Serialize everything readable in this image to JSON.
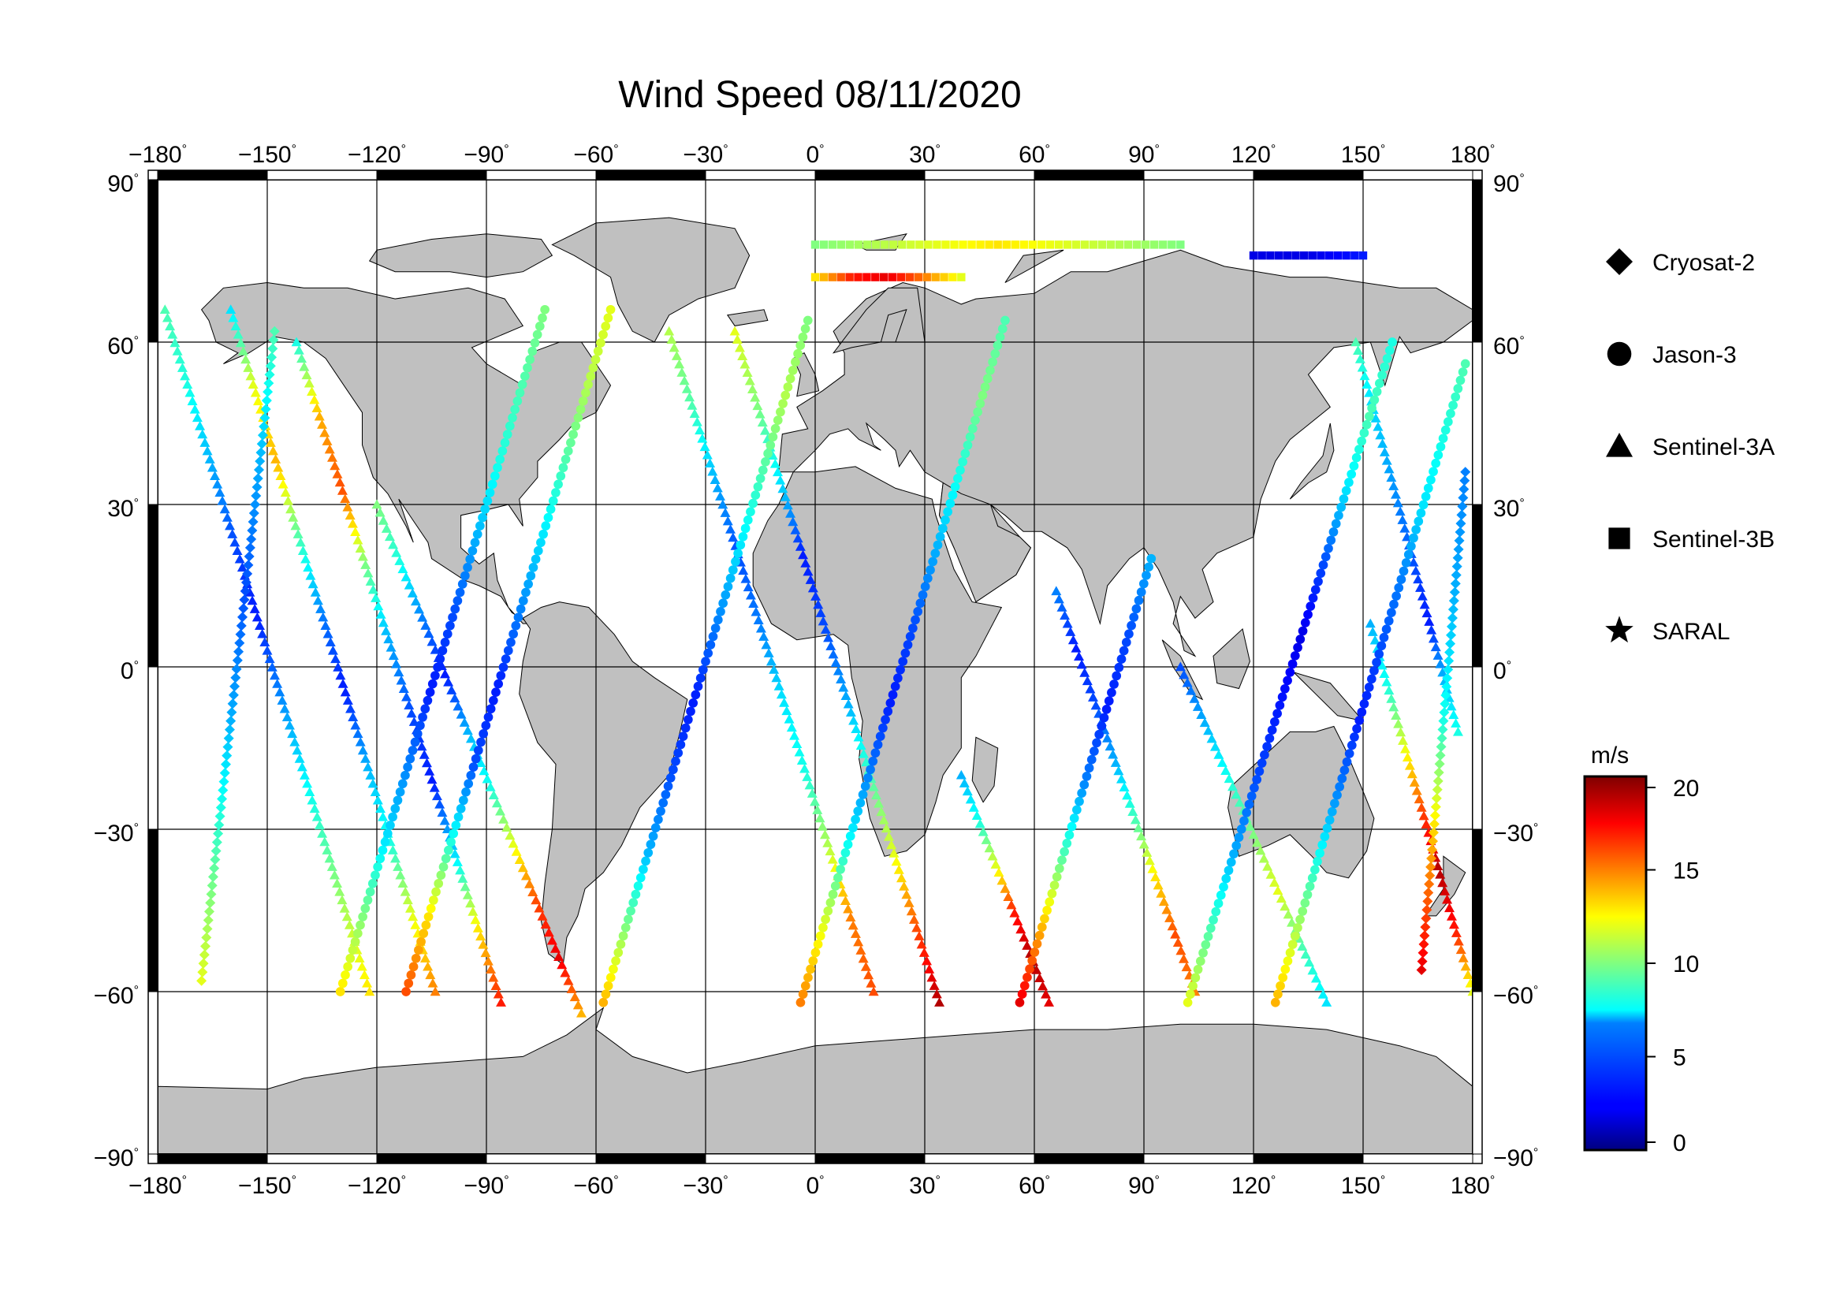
{
  "title": "Wind Speed 08/11/2020",
  "map": {
    "projection": "equirectangular",
    "lon_range": [
      -180,
      180
    ],
    "lat_range": [
      -90,
      90
    ],
    "lon_ticks": [
      -180,
      -150,
      -120,
      -90,
      -60,
      -30,
      0,
      30,
      60,
      90,
      120,
      150,
      180
    ],
    "lat_ticks": [
      90,
      60,
      30,
      0,
      -30,
      -60,
      -90
    ],
    "lon_tick_labels": [
      "−180",
      "−150",
      "−120",
      "−90",
      "−60",
      "−30",
      "0",
      "30",
      "60",
      "90",
      "120",
      "150",
      "180"
    ],
    "lat_tick_labels": [
      "90",
      "60",
      "30",
      "0",
      "−30",
      "−60",
      "−90"
    ],
    "degree_symbol": "°",
    "land_color": "#c0c0c0",
    "ocean_color": "#ffffff",
    "grid": true
  },
  "legend": {
    "satellites": [
      {
        "name": "Cryosat-2",
        "marker": "diamond"
      },
      {
        "name": "Jason-3",
        "marker": "circle"
      },
      {
        "name": "Sentinel-3A",
        "marker": "triangle"
      },
      {
        "name": "Sentinel-3B",
        "marker": "square"
      },
      {
        "name": "SARAL",
        "marker": "star"
      }
    ]
  },
  "colorbar": {
    "unit": "m/s",
    "min": 0,
    "max": 20,
    "ticks": [
      20,
      15,
      10,
      5,
      0
    ],
    "tick_labels": [
      "20",
      "15",
      "10",
      "5",
      "0"
    ],
    "colormap": "jet"
  },
  "chart_data": {
    "type": "scatter",
    "title": "Wind Speed 08/11/2020",
    "xlabel": "",
    "ylabel": "",
    "xlim": [
      -180,
      180
    ],
    "ylim": [
      -90,
      90
    ],
    "value_unit": "m/s",
    "value_range": [
      0,
      20
    ],
    "series": [
      {
        "name": "Sentinel-3A",
        "marker": "triangle",
        "tracks": [
          {
            "lon_start": -178,
            "lat_start": 66,
            "lon_end": -122,
            "lat_end": -60,
            "values": [
              9,
              8,
              6,
              4,
              3,
              5,
              7,
              9,
              11,
              13
            ]
          },
          {
            "lon_start": -160,
            "lat_start": 66,
            "lon_end": -104,
            "lat_end": -60,
            "values": [
              7,
              12,
              14,
              9,
              5,
              3,
              6,
              8,
              12,
              15
            ]
          },
          {
            "lon_start": -142,
            "lat_start": 60,
            "lon_end": -86,
            "lat_end": -62,
            "values": [
              8,
              14,
              16,
              10,
              6,
              4,
              3,
              7,
              13,
              17
            ]
          },
          {
            "lon_start": -120,
            "lat_start": 30,
            "lon_end": -64,
            "lat_end": -64,
            "values": [
              10,
              8,
              5,
              3,
              6,
              8,
              12,
              16,
              18,
              14
            ]
          },
          {
            "lon_start": -40,
            "lat_start": 62,
            "lon_end": 16,
            "lat_end": -60,
            "values": [
              11,
              9,
              6,
              4,
              5,
              7,
              8,
              11,
              15,
              16
            ]
          },
          {
            "lon_start": -22,
            "lat_start": 62,
            "lon_end": 34,
            "lat_end": -62,
            "values": [
              12,
              10,
              7,
              3,
              4,
              6,
              9,
              12,
              16,
              19
            ]
          },
          {
            "lon_start": 40,
            "lat_start": -20,
            "lon_end": 64,
            "lat_end": -62,
            "values": [
              6,
              8,
              12,
              17,
              19,
              18
            ]
          },
          {
            "lon_start": 66,
            "lat_start": 14,
            "lon_end": 104,
            "lat_end": -60,
            "values": [
              5,
              3,
              4,
              6,
              9,
              13,
              16,
              15
            ]
          },
          {
            "lon_start": 100,
            "lat_start": 0,
            "lon_end": 140,
            "lat_end": -62,
            "values": [
              4,
              6,
              8,
              10,
              12,
              9,
              7
            ]
          },
          {
            "lon_start": 148,
            "lat_start": 60,
            "lon_end": 176,
            "lat_end": -12,
            "values": [
              9,
              7,
              6,
              5,
              4,
              3,
              6,
              8
            ]
          },
          {
            "lon_start": 152,
            "lat_start": 8,
            "lon_end": 180,
            "lat_end": -60,
            "values": [
              6,
              8,
              12,
              16,
              19,
              17,
              12
            ]
          }
        ]
      },
      {
        "name": "Sentinel-3B",
        "marker": "square",
        "tracks": [
          {
            "lon_start": 0,
            "lat_start": 78,
            "lon_end": 100,
            "lat_end": 78,
            "values": [
              10,
              11,
              12,
              13,
              12,
              11,
              10
            ]
          },
          {
            "lon_start": 0,
            "lat_start": 72,
            "lon_end": 40,
            "lat_end": 72,
            "values": [
              13,
              17,
              18,
              15,
              12
            ]
          },
          {
            "lon_start": 120,
            "lat_start": 76,
            "lon_end": 150,
            "lat_end": 76,
            "values": [
              2,
              2,
              3
            ]
          }
        ]
      },
      {
        "name": "Jason-3",
        "marker": "circle",
        "tracks": [
          {
            "lon_start": -130,
            "lat_start": -60,
            "lon_end": -74,
            "lat_end": 66,
            "values": [
              13,
              10,
              7,
              5,
              3,
              4,
              6,
              8,
              9,
              10
            ]
          },
          {
            "lon_start": -112,
            "lat_start": -60,
            "lon_end": -56,
            "lat_end": 66,
            "values": [
              16,
              13,
              8,
              4,
              3,
              5,
              7,
              9,
              11,
              12
            ]
          },
          {
            "lon_start": -58,
            "lat_start": -62,
            "lon_end": -2,
            "lat_end": 64,
            "values": [
              14,
              10,
              6,
              4,
              3,
              5,
              7,
              9,
              11,
              10
            ]
          },
          {
            "lon_start": -4,
            "lat_start": -62,
            "lon_end": 52,
            "lat_end": 64,
            "values": [
              15,
              12,
              8,
              5,
              3,
              4,
              6,
              8,
              10,
              9
            ]
          },
          {
            "lon_start": 56,
            "lat_start": -62,
            "lon_end": 92,
            "lat_end": 20,
            "values": [
              18,
              14,
              9,
              5,
              3,
              4,
              6
            ]
          },
          {
            "lon_start": 102,
            "lat_start": -62,
            "lon_end": 158,
            "lat_end": 60,
            "values": [
              12,
              9,
              6,
              4,
              3,
              2,
              4,
              7,
              9,
              8
            ]
          },
          {
            "lon_start": 126,
            "lat_start": -62,
            "lon_end": 178,
            "lat_end": 56,
            "values": [
              14,
              11,
              8,
              5,
              3,
              4,
              5,
              7,
              8,
              9
            ]
          }
        ]
      },
      {
        "name": "Cryosat-2",
        "marker": "diamond",
        "tracks": [
          {
            "lon_start": -168,
            "lat_start": -58,
            "lon_end": -148,
            "lat_end": 62,
            "values": [
              12,
              9,
              6,
              4,
              6,
              9
            ]
          },
          {
            "lon_start": 166,
            "lat_start": -56,
            "lon_end": 178,
            "lat_end": 36,
            "values": [
              18,
              14,
              8,
              6,
              5
            ]
          }
        ]
      },
      {
        "name": "SARAL",
        "marker": "star",
        "tracks": []
      }
    ]
  }
}
